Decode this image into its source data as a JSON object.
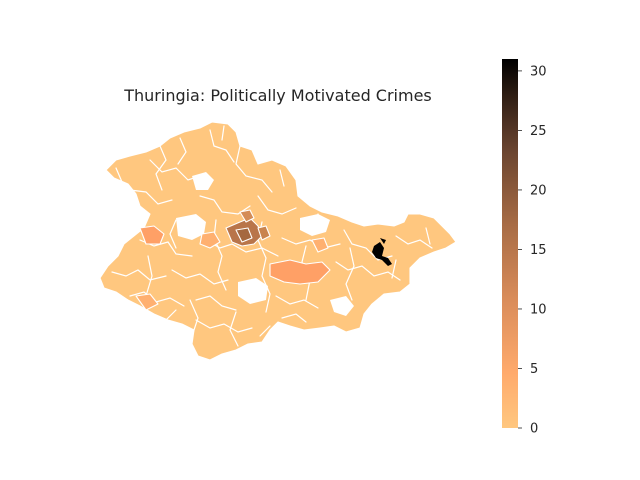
{
  "chart_data": {
    "type": "choropleth",
    "title": "Thuringia: Politically Motivated Crimes",
    "colormap": "copper_r",
    "colorbar": {
      "min": 0,
      "max": 31,
      "ticks": [
        0,
        5,
        10,
        15,
        20,
        25,
        30
      ],
      "placement": "right"
    },
    "colors": {
      "low": "#ffc77f",
      "mid": "#ffa066",
      "high": "#000000",
      "border": "#ffffff"
    }
  }
}
